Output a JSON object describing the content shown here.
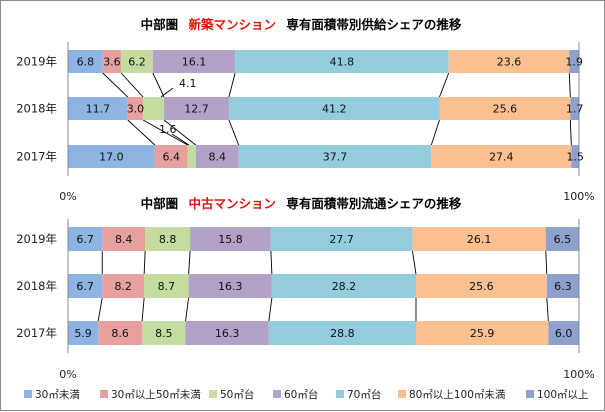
{
  "charts": [
    {
      "title_prefix": "中部圏",
      "title_highlight": "新築マンション",
      "title_suffix": "専有面積帯別供給シェアの推移"
    },
    {
      "title_prefix": "中部圏",
      "title_highlight": "中古マンション",
      "title_suffix": "専有面積帯別流通シェアの推移"
    }
  ],
  "legend": {
    "items": [
      "30㎡未満",
      "30㎡以上50㎡未満",
      "50㎡台",
      "60㎡台",
      "70㎡台",
      "80㎡以上100㎡未満",
      "100㎡以上"
    ]
  },
  "colors": {
    "highlight": "#e3120b",
    "segments": [
      "#8db4e2",
      "#e6a09e",
      "#c4dca0",
      "#b3a2c7",
      "#93cddd",
      "#fac090",
      "#8ea1cc"
    ]
  },
  "chart_data": [
    {
      "type": "bar",
      "orientation": "horizontal-stacked-100%",
      "categories": [
        "2019年",
        "2018年",
        "2017年"
      ],
      "series": [
        {
          "name": "30㎡未満",
          "values": [
            6.8,
            11.7,
            17.0
          ]
        },
        {
          "name": "30㎡以上50㎡未満",
          "values": [
            3.6,
            3.0,
            6.4
          ]
        },
        {
          "name": "50㎡台",
          "values": [
            6.2,
            4.1,
            1.6
          ]
        },
        {
          "name": "60㎡台",
          "values": [
            16.1,
            12.7,
            8.4
          ]
        },
        {
          "name": "70㎡台",
          "values": [
            41.8,
            41.2,
            37.7
          ]
        },
        {
          "name": "80㎡以上100㎡未満",
          "values": [
            23.6,
            25.6,
            27.4
          ]
        },
        {
          "name": "100㎡以上",
          "values": [
            1.9,
            1.7,
            1.5
          ]
        }
      ],
      "xlim": [
        0,
        100
      ],
      "x_tick_labels": [
        "0%",
        "100%"
      ],
      "legend_position": "bottom",
      "grid": false
    },
    {
      "type": "bar",
      "orientation": "horizontal-stacked-100%",
      "categories": [
        "2019年",
        "2018年",
        "2017年"
      ],
      "series": [
        {
          "name": "30㎡未満",
          "values": [
            6.7,
            6.7,
            5.9
          ]
        },
        {
          "name": "30㎡以上50㎡未満",
          "values": [
            8.4,
            8.2,
            8.6
          ]
        },
        {
          "name": "50㎡台",
          "values": [
            8.8,
            8.7,
            8.5
          ]
        },
        {
          "name": "60㎡台",
          "values": [
            15.8,
            16.3,
            16.3
          ]
        },
        {
          "name": "70㎡台",
          "values": [
            27.7,
            28.2,
            28.8
          ]
        },
        {
          "name": "80㎡以上100㎡未満",
          "values": [
            26.1,
            25.6,
            25.9
          ]
        },
        {
          "name": "100㎡以上",
          "values": [
            6.5,
            6.3,
            6.0
          ]
        }
      ],
      "xlim": [
        0,
        100
      ],
      "x_tick_labels": [
        "0%",
        "100%"
      ],
      "legend_position": "bottom",
      "grid": false
    }
  ]
}
